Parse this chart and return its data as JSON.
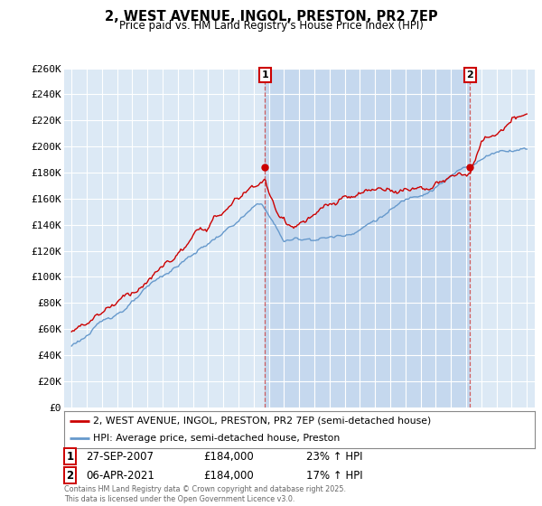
{
  "title": "2, WEST AVENUE, INGOL, PRESTON, PR2 7EP",
  "subtitle": "Price paid vs. HM Land Registry's House Price Index (HPI)",
  "ylim": [
    0,
    260000
  ],
  "yticks": [
    0,
    20000,
    40000,
    60000,
    80000,
    100000,
    120000,
    140000,
    160000,
    180000,
    200000,
    220000,
    240000,
    260000
  ],
  "ytick_labels": [
    "£0",
    "£20K",
    "£40K",
    "£60K",
    "£80K",
    "£100K",
    "£120K",
    "£140K",
    "£160K",
    "£180K",
    "£200K",
    "£220K",
    "£240K",
    "£260K"
  ],
  "background_color": "#ffffff",
  "plot_bg_color": "#dce9f5",
  "grid_color": "#ffffff",
  "red_color": "#cc0000",
  "blue_color": "#6699cc",
  "shade_color": "#c5d8ee",
  "marker1_year": 2007.74,
  "marker1_price": 184000,
  "marker2_year": 2021.26,
  "marker2_price": 184000,
  "legend_label_red": "2, WEST AVENUE, INGOL, PRESTON, PR2 7EP (semi-detached house)",
  "legend_label_blue": "HPI: Average price, semi-detached house, Preston",
  "annotation1": "27-SEP-2007",
  "annotation1_price": "£184,000",
  "annotation1_hpi": "23% ↑ HPI",
  "annotation2": "06-APR-2021",
  "annotation2_price": "£184,000",
  "annotation2_hpi": "17% ↑ HPI",
  "footer": "Contains HM Land Registry data © Crown copyright and database right 2025.\nThis data is licensed under the Open Government Licence v3.0.",
  "xlim": [
    1994.5,
    2025.5
  ],
  "xticks": [
    1995,
    1996,
    1997,
    1998,
    1999,
    2000,
    2001,
    2002,
    2003,
    2004,
    2005,
    2006,
    2007,
    2008,
    2009,
    2010,
    2011,
    2012,
    2013,
    2014,
    2015,
    2016,
    2017,
    2018,
    2019,
    2020,
    2021,
    2022,
    2023,
    2024,
    2025
  ]
}
